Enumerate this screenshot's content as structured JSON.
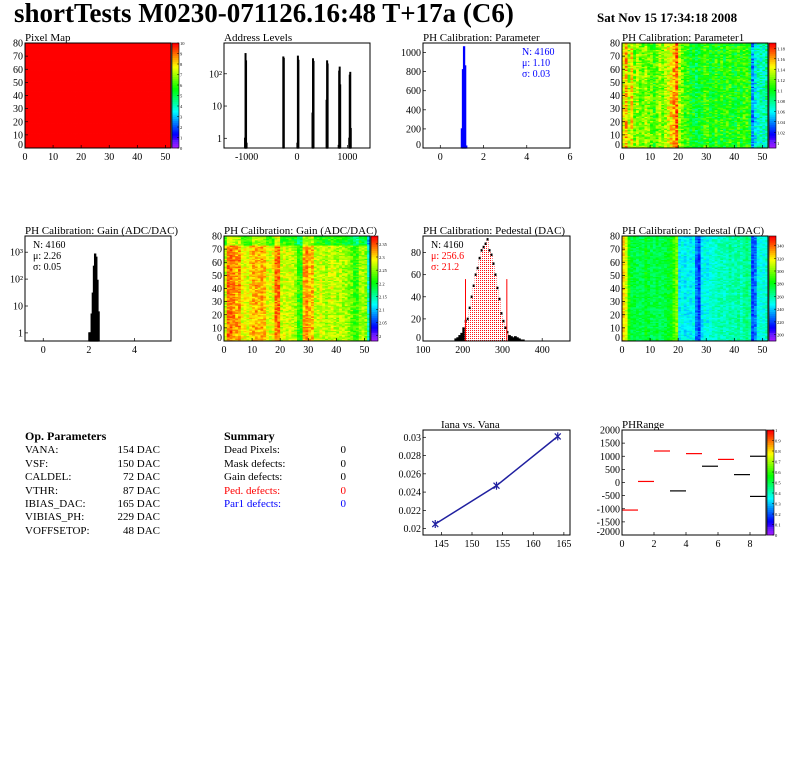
{
  "header": {
    "title": "shortTests M0230-071126.16:48 T+17a (C6)",
    "date": "Sat Nov 15 17:34:18 2008"
  },
  "params": {
    "heading": "Op. Parameters",
    "rows": [
      {
        "name": "VANA:",
        "value": "154 DAC"
      },
      {
        "name": "VSF:",
        "value": "150 DAC"
      },
      {
        "name": "CALDEL:",
        "value": "72 DAC"
      },
      {
        "name": "VTHR:",
        "value": "87 DAC"
      },
      {
        "name": "IBIAS_DAC:",
        "value": "165 DAC"
      },
      {
        "name": "VIBIAS_PH:",
        "value": "229 DAC"
      },
      {
        "name": "VOFFSETOP:",
        "value": "48 DAC"
      }
    ]
  },
  "summary": {
    "heading": "Summary",
    "rows": [
      {
        "name": "Dead Pixels:",
        "value": "0",
        "color": "#000000"
      },
      {
        "name": "Mask defects:",
        "value": "0",
        "color": "#000000"
      },
      {
        "name": "Gain defects:",
        "value": "0",
        "color": "#000000"
      },
      {
        "name": "Ped. defects:",
        "value": "0",
        "color": "#ff0000"
      },
      {
        "name": "Par1 defects:",
        "value": "0",
        "color": "#0000ff"
      }
    ]
  },
  "chart_data": [
    {
      "id": "pixelmap",
      "type": "heatmap",
      "title": "Pixel Map",
      "xlim": [
        0,
        52
      ],
      "ylim": [
        0,
        80
      ],
      "zlim": [
        0,
        10
      ],
      "xticks": [
        0,
        10,
        20,
        30,
        40,
        50
      ],
      "yticks": [
        0,
        10,
        20,
        30,
        40,
        50,
        60,
        70,
        80
      ],
      "zticks": [
        0,
        1,
        2,
        3,
        4,
        5,
        6,
        7,
        8,
        9,
        10
      ],
      "uniform_value": 10
    },
    {
      "id": "address",
      "type": "bar",
      "title": "Address Levels",
      "xlim": [
        -1450,
        1450
      ],
      "ylim": [
        0.5,
        900
      ],
      "yscale": "log",
      "xticks": [
        -1000,
        0,
        1000
      ],
      "yticks": [
        {
          "v": 1,
          "label": "1"
        },
        {
          "v": 10,
          "label": "10"
        },
        {
          "v": 100,
          "label": "10²"
        }
      ],
      "bins": [
        [
          -1040,
          1
        ],
        [
          -1030,
          420
        ],
        [
          -1020,
          250
        ],
        [
          -1010,
          0.7
        ],
        [
          -280,
          330
        ],
        [
          -270,
          300
        ],
        [
          0,
          0.7
        ],
        [
          10,
          350
        ],
        [
          20,
          260
        ],
        [
          300,
          6
        ],
        [
          310,
          290
        ],
        [
          320,
          240
        ],
        [
          580,
          15
        ],
        [
          590,
          250
        ],
        [
          600,
          200
        ],
        [
          820,
          0.6
        ],
        [
          830,
          120
        ],
        [
          840,
          160
        ],
        [
          850,
          45
        ],
        [
          1030,
          1
        ],
        [
          1040,
          90
        ],
        [
          1050,
          110
        ],
        [
          1060,
          2
        ]
      ],
      "bin_width": 10,
      "color": "#000000"
    },
    {
      "id": "param",
      "type": "bar",
      "title": "PH Calibration: Parameter",
      "xlim": [
        -0.8,
        6
      ],
      "ylim": [
        0,
        1100
      ],
      "xticks": [
        0,
        2,
        4,
        6
      ],
      "yticks": [
        0,
        200,
        400,
        600,
        800,
        1000
      ],
      "bins": [
        [
          0.975,
          200
        ],
        [
          1.025,
          820
        ],
        [
          1.075,
          1060
        ],
        [
          1.125,
          860
        ],
        [
          1.175,
          20
        ]
      ],
      "bin_width": 0.05,
      "color": "#0000ff",
      "stats": {
        "n": "N: 4160",
        "mean": "μ: 1.10",
        "sigma": "σ: 0.03",
        "color": "#0000ff"
      }
    },
    {
      "id": "param1map",
      "type": "heatmap",
      "title": "PH Calibration: Parameter1",
      "xlim": [
        0,
        52
      ],
      "ylim": [
        0,
        80
      ],
      "zlim": [
        0.99,
        1.19
      ],
      "xticks": [
        0,
        10,
        20,
        30,
        40,
        50
      ],
      "yticks": [
        0,
        10,
        20,
        30,
        40,
        50,
        60,
        70,
        80
      ],
      "zticks": [
        1,
        1.02,
        1.04,
        1.06,
        1.08,
        1.1,
        1.12,
        1.14,
        1.16,
        1.18
      ],
      "noise": 0.02,
      "column_means": [
        1.14,
        1.16,
        1.13,
        1.15,
        1.12,
        1.13,
        1.12,
        1.12,
        1.13,
        1.12,
        1.12,
        1.11,
        1.12,
        1.13,
        1.12,
        1.13,
        1.14,
        1.15,
        1.16,
        1.17,
        1.13,
        1.12,
        1.11,
        1.11,
        1.1,
        1.1,
        1.09,
        1.1,
        1.1,
        1.11,
        1.11,
        1.1,
        1.1,
        1.11,
        1.1,
        1.11,
        1.1,
        1.11,
        1.11,
        1.1,
        1.1,
        1.11,
        1.1,
        1.11,
        1.11,
        1.1,
        1.04,
        1.06,
        1.07,
        1.07,
        1.07,
        1.08
      ]
    },
    {
      "id": "gain",
      "type": "bar",
      "title": "PH Calibration: Gain (ADC/DAC)",
      "xlim": [
        -0.8,
        5.6
      ],
      "ylim": [
        0.5,
        4000
      ],
      "yscale": "log",
      "xticks": [
        0,
        2,
        4
      ],
      "yticks": [
        {
          "v": 1,
          "label": "1"
        },
        {
          "v": 10,
          "label": "10"
        },
        {
          "v": 100,
          "label": "10²"
        },
        {
          "v": 1000,
          "label": "10³"
        }
      ],
      "bins": [
        [
          2.0,
          1
        ],
        [
          2.05,
          1
        ],
        [
          2.1,
          5
        ],
        [
          2.15,
          30
        ],
        [
          2.2,
          300
        ],
        [
          2.25,
          850
        ],
        [
          2.3,
          650
        ],
        [
          2.35,
          90
        ],
        [
          2.4,
          6
        ]
      ],
      "bin_width": 0.05,
      "color": "#000000",
      "stats": {
        "n": "N: 4160",
        "mean": "μ: 2.26",
        "sigma": "σ: 0.05",
        "color": "#000000"
      }
    },
    {
      "id": "gainmap",
      "type": "heatmap",
      "title": "PH Calibration: Gain (ADC/DAC)",
      "xlim": [
        0,
        52
      ],
      "ylim": [
        0,
        80
      ],
      "zlim": [
        1.98,
        2.38
      ],
      "xticks": [
        0,
        10,
        20,
        30,
        40,
        50
      ],
      "yticks": [
        0,
        10,
        20,
        30,
        40,
        50,
        60,
        70,
        80
      ],
      "zticks": [
        2,
        2.05,
        2.1,
        2.15,
        2.2,
        2.25,
        2.3,
        2.35
      ],
      "noise": 0.03,
      "column_means": [
        2.27,
        2.34,
        2.34,
        2.33,
        2.32,
        2.33,
        2.29,
        2.29,
        2.28,
        2.3,
        2.32,
        2.32,
        2.31,
        2.32,
        2.31,
        2.28,
        2.28,
        2.29,
        2.34,
        2.34,
        2.27,
        2.28,
        2.27,
        2.28,
        2.27,
        2.26,
        2.22,
        2.22,
        2.32,
        2.33,
        2.31,
        2.32,
        2.27,
        2.27,
        2.28,
        2.27,
        2.26,
        2.27,
        2.28,
        2.27,
        2.26,
        2.27,
        2.26,
        2.26,
        2.25,
        2.24,
        2.22,
        2.22,
        2.26,
        2.26,
        2.25,
        2.14
      ]
    },
    {
      "id": "pedestal",
      "type": "bar",
      "title": "PH Calibration: Pedestal (DAC)",
      "xlim": [
        100,
        470
      ],
      "ylim": [
        0,
        95
      ],
      "xticks": [
        100,
        200,
        300,
        400
      ],
      "yticks": [
        0,
        20,
        40,
        60,
        80
      ],
      "bins": [
        [
          180,
          2
        ],
        [
          185,
          3
        ],
        [
          190,
          5
        ],
        [
          195,
          7
        ],
        [
          200,
          12
        ],
        [
          205,
          18
        ],
        [
          210,
          20
        ],
        [
          215,
          30
        ],
        [
          220,
          40
        ],
        [
          225,
          50
        ],
        [
          230,
          60
        ],
        [
          235,
          66
        ],
        [
          240,
          75
        ],
        [
          245,
          82
        ],
        [
          250,
          85
        ],
        [
          255,
          88
        ],
        [
          260,
          92
        ],
        [
          265,
          82
        ],
        [
          270,
          78
        ],
        [
          275,
          70
        ],
        [
          280,
          60
        ],
        [
          285,
          48
        ],
        [
          290,
          38
        ],
        [
          295,
          25
        ],
        [
          300,
          18
        ],
        [
          305,
          12
        ],
        [
          310,
          8
        ],
        [
          315,
          5
        ],
        [
          320,
          4
        ],
        [
          325,
          3
        ],
        [
          330,
          4
        ],
        [
          335,
          3
        ],
        [
          340,
          2
        ],
        [
          345,
          1
        ],
        [
          350,
          1
        ]
      ],
      "bin_width": 5,
      "color": "#000000",
      "cut_lines": [
        207,
        311
      ],
      "cut_color": "#ff0000",
      "cut_height": 56,
      "stats": {
        "n": "N: 4160",
        "mean": "μ: 256.6",
        "sigma": "σ: 21.2",
        "color": "#ff0000"
      }
    },
    {
      "id": "pedmap",
      "type": "heatmap",
      "title": "PH Calibration: Pedestal (DAC)",
      "xlim": [
        0,
        52
      ],
      "ylim": [
        0,
        80
      ],
      "zlim": [
        190,
        355
      ],
      "xticks": [
        0,
        10,
        20,
        30,
        40,
        50
      ],
      "yticks": [
        0,
        10,
        20,
        30,
        40,
        50,
        60,
        70,
        80
      ],
      "zticks": [
        200,
        220,
        240,
        260,
        280,
        300,
        320,
        340
      ],
      "noise": 9,
      "column_means": [
        325,
        315,
        285,
        275,
        275,
        272,
        272,
        272,
        280,
        275,
        272,
        272,
        275,
        272,
        272,
        275,
        278,
        280,
        290,
        300,
        245,
        250,
        245,
        248,
        245,
        250,
        228,
        220,
        245,
        250,
        248,
        252,
        255,
        255,
        258,
        258,
        256,
        258,
        262,
        258,
        258,
        262,
        256,
        262,
        265,
        260,
        222,
        228,
        250,
        252,
        250,
        255
      ]
    },
    {
      "id": "iana",
      "type": "line",
      "title": "Iana vs. Vana",
      "xlim": [
        142,
        166
      ],
      "ylim": [
        0.0193,
        0.0308
      ],
      "xticks": [
        145,
        150,
        155,
        160,
        165
      ],
      "yticks": [
        0.02,
        0.022,
        0.024,
        0.026,
        0.028,
        0.03
      ],
      "x": [
        144,
        154,
        164
      ],
      "y": [
        0.0205,
        0.0247,
        0.0301
      ],
      "color": "#2020a0"
    },
    {
      "id": "phrange",
      "type": "heatmap",
      "title": "PHRange",
      "xlim": [
        0,
        9
      ],
      "ylim": [
        -2000,
        2000
      ],
      "zlim": [
        0,
        1
      ],
      "xticks": [
        0,
        2,
        4,
        6,
        8
      ],
      "yticks": [
        -2000,
        -1500,
        -1000,
        -500,
        0,
        500,
        1000,
        1500,
        2000
      ],
      "zticks": [
        0,
        0.1,
        0.2,
        0.3,
        0.4,
        0.5,
        0.6,
        0.7,
        0.8,
        0.9,
        1
      ],
      "segments": [
        [
          0,
          -1050,
          "#ff0000"
        ],
        [
          1,
          40,
          "#ff0000"
        ],
        [
          2,
          1200,
          "#ff0000"
        ],
        [
          3,
          -320,
          "#000000"
        ],
        [
          4,
          1100,
          "#ff0000"
        ],
        [
          5,
          620,
          "#000000"
        ],
        [
          6,
          880,
          "#ff0000"
        ],
        [
          7,
          300,
          "#000000"
        ],
        [
          8,
          1000,
          "#000000"
        ],
        [
          8,
          -530,
          "#000000"
        ]
      ]
    }
  ]
}
